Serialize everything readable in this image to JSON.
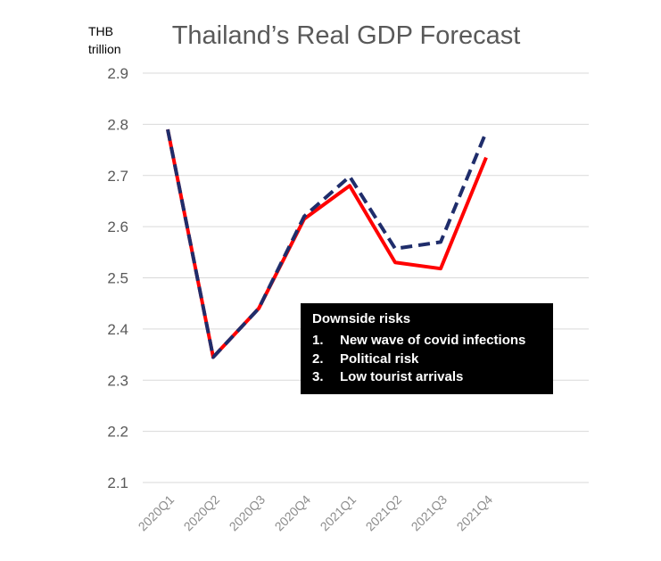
{
  "chart_data": {
    "type": "line",
    "title": "Thailand’s Real GDP Forecast",
    "unit_label": [
      "THB",
      "trillion"
    ],
    "categories": [
      "2020Q1",
      "2020Q2",
      "2020Q3",
      "2020Q4",
      "2021Q1",
      "2021Q2",
      "2021Q3",
      "2021Q4"
    ],
    "ylim": [
      2.1,
      2.9
    ],
    "yticks": [
      "2.9",
      "2.8",
      "2.7",
      "2.6",
      "2.5",
      "2.4",
      "2.3",
      "2.2",
      "2.1"
    ],
    "grid": true,
    "series": [
      {
        "values": [
          2.79,
          2.345,
          2.44,
          2.615,
          2.68,
          2.53,
          2.518,
          2.735
        ],
        "color": "#ff0000",
        "style": "solid"
      },
      {
        "values": [
          2.79,
          2.345,
          2.44,
          2.62,
          2.698,
          2.557,
          2.57,
          2.785
        ],
        "color": "#1f2d6b",
        "style": "dashed"
      }
    ],
    "annotation": {
      "heading": "Downside risks",
      "items": [
        {
          "num": "1.",
          "text": "New wave of covid infections"
        },
        {
          "num": "2.",
          "text": "Political risk"
        },
        {
          "num": "3.",
          "text": "Low tourist arrivals"
        }
      ]
    }
  }
}
